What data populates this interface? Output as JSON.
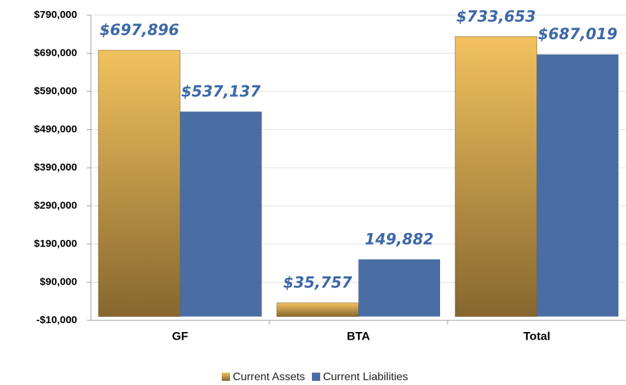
{
  "chart_data": {
    "type": "bar",
    "categories": [
      "GF",
      "BTA",
      "Total"
    ],
    "series": [
      {
        "name": "Current Assets",
        "color": "#d9a94a",
        "values": [
          697896,
          35757,
          733653
        ],
        "value_labels": [
          "$697,896",
          "$35,757",
          "$733,653"
        ]
      },
      {
        "name": "Current Liabilities",
        "color": "#4a6da3",
        "values": [
          537137,
          149882,
          687019
        ],
        "value_labels": [
          "$537,137",
          "149,882",
          "$687,019"
        ]
      }
    ],
    "ylim": [
      -10000,
      790000
    ],
    "yticks": [
      {
        "value": -10000,
        "label": "-$10,000"
      },
      {
        "value": 90000,
        "label": "$90,000"
      },
      {
        "value": 190000,
        "label": "$190,000"
      },
      {
        "value": 290000,
        "label": "$290,000"
      },
      {
        "value": 390000,
        "label": "$390,000"
      },
      {
        "value": 490000,
        "label": "$490,000"
      },
      {
        "value": 590000,
        "label": "$590,000"
      },
      {
        "value": 690000,
        "label": "$690,000"
      },
      {
        "value": 790000,
        "label": "$790,000"
      }
    ],
    "grid": true,
    "legend": "bottom"
  }
}
